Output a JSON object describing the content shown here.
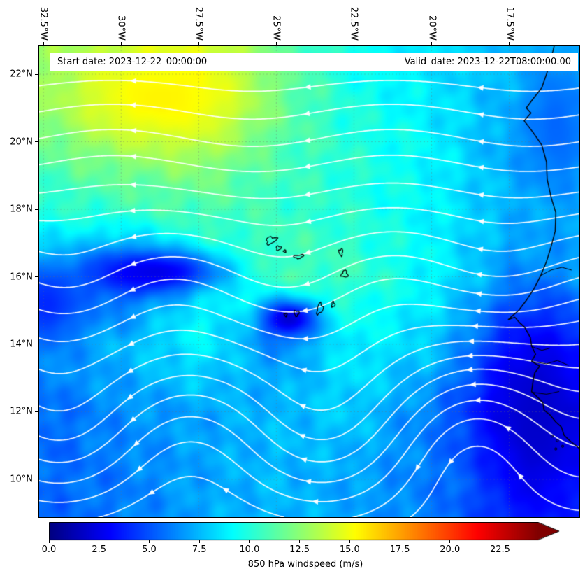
{
  "chart_data": {
    "type": "heatmap",
    "subtype": "geographic windspeed field with white streamlines (matplotlib-style map plot)",
    "region": "Cape Verde islands and West African coast, tropical North Atlantic",
    "annotations": [
      "Start date: 2023-12-22_00:00:00",
      "Valid_date: 2023-12-22T08:00:00.00"
    ],
    "x_axis": {
      "tick_labels": [
        "32.5°W",
        "30°W",
        "27.5°W",
        "25°W",
        "22.5°W",
        "20°W",
        "17.5°W"
      ],
      "tick_lons": [
        -32.5,
        -30,
        -27.5,
        -25,
        -22.5,
        -20,
        -17.5
      ]
    },
    "y_axis": {
      "tick_labels": [
        "22°N",
        "20°N",
        "18°N",
        "16°N",
        "14°N",
        "12°N",
        "10°N"
      ],
      "tick_lats": [
        22,
        20,
        18,
        16,
        14,
        12,
        10
      ]
    },
    "lon_range": [
      -32.64,
      -15.24
    ],
    "lat_range": [
      8.88,
      22.83
    ],
    "colorbar": {
      "label": "850 hPa windspeed (m/s)",
      "tick_labels": [
        "0.0",
        "2.5",
        "5.0",
        "7.5",
        "10.0",
        "12.5",
        "15.0",
        "17.5",
        "20.0",
        "22.5"
      ],
      "tick_values": [
        0,
        2.5,
        5,
        7.5,
        10,
        12.5,
        15,
        17.5,
        20,
        22.5
      ],
      "colormap": "jet",
      "vmin": 0,
      "bar_max_value": 24.4,
      "extend": "max"
    },
    "wind_grid": {
      "lons": [
        -32.5,
        -30,
        -27.5,
        -25,
        -22.5,
        -20,
        -17.5
      ],
      "lats": [
        22,
        20,
        18,
        16,
        14,
        12,
        10
      ],
      "speeds_mps": [
        [
          12.5,
          13.5,
          14.5,
          11.5,
          9.5,
          8.5,
          7.5
        ],
        [
          11.5,
          12.5,
          13.0,
          11.0,
          10.0,
          9.0,
          7.0
        ],
        [
          10.0,
          10.5,
          11.0,
          10.5,
          10.0,
          9.0,
          7.5
        ],
        [
          8.0,
          5.0,
          9.0,
          11.0,
          10.5,
          9.0,
          7.0
        ],
        [
          7.0,
          7.5,
          9.0,
          6.5,
          9.0,
          8.0,
          4.5
        ],
        [
          5.5,
          6.5,
          7.0,
          7.5,
          8.0,
          6.0,
          3.0
        ],
        [
          5.5,
          6.0,
          7.0,
          7.5,
          7.0,
          6.0,
          4.5
        ]
      ]
    },
    "features": [
      {
        "name": "speed-max-northwest",
        "lon": -28.7,
        "lat": 21.3,
        "rlon": 2.0,
        "rlat": 1.0,
        "value": 15.5
      },
      {
        "name": "calm-streak-16n",
        "lon": -28.9,
        "lat": 16.15,
        "rlon": 1.5,
        "rlat": 0.45,
        "value": 2.5
      },
      {
        "name": "island-wake-min",
        "lon": -24.6,
        "lat": 14.75,
        "rlon": 0.65,
        "rlat": 0.4,
        "value": 2.0
      },
      {
        "name": "coastal-min-south",
        "lon": -16.6,
        "lat": 11.8,
        "rlon": 1.1,
        "rlat": 2.2,
        "value": 1.8
      },
      {
        "name": "west-edge-min",
        "lon": -32.4,
        "lat": 15.2,
        "rlon": 0.9,
        "rlat": 0.9,
        "value": 4.0
      },
      {
        "name": "coastal-min-north",
        "lon": -16.0,
        "lat": 20.5,
        "rlon": 0.7,
        "rlat": 1.5,
        "value": 5.5
      }
    ],
    "streamlines": {
      "color": "#ffffff",
      "flow_description": "easterly trade winds; arrows point westward, curving southwest near the African coast"
    },
    "coastline_color": "#000000"
  }
}
